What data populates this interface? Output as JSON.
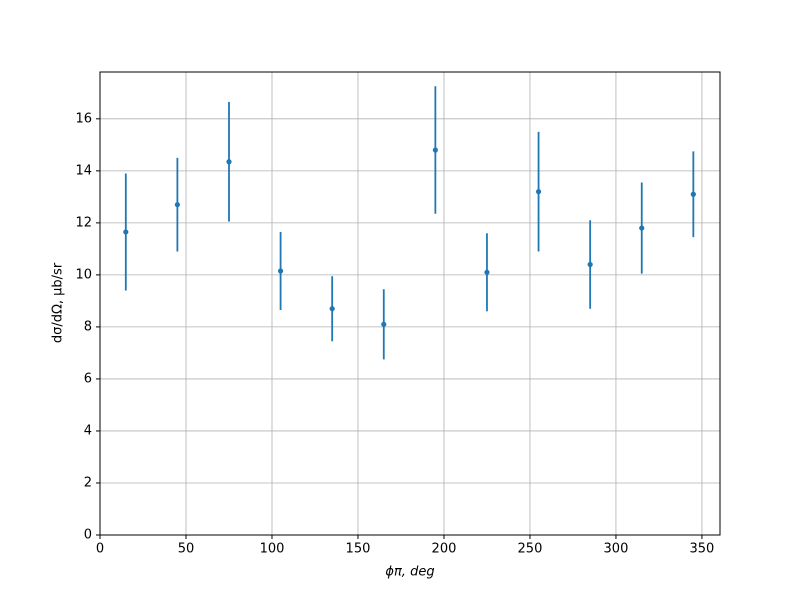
{
  "chart_data": {
    "type": "errorbar",
    "xlabel": "ϕπ, deg",
    "ylabel": "dσ/dΩ, μb/sr",
    "x": [
      15,
      45,
      75,
      105,
      135,
      165,
      195,
      225,
      255,
      285,
      315,
      345
    ],
    "values": [
      11.65,
      12.7,
      14.35,
      10.15,
      8.7,
      8.1,
      14.8,
      10.1,
      13.2,
      10.4,
      11.8,
      13.1
    ],
    "errors": [
      2.25,
      1.8,
      2.3,
      1.5,
      1.25,
      1.35,
      2.45,
      1.5,
      2.3,
      1.7,
      1.75,
      1.65
    ],
    "color": "#1f77b4",
    "xlim": [
      0,
      360.5
    ],
    "xticks": [
      0,
      50,
      100,
      150,
      200,
      250,
      300,
      350
    ],
    "ylim": [
      0,
      17.8
    ],
    "yticks": [
      0,
      2,
      4,
      6,
      8,
      10,
      12,
      14,
      16
    ],
    "grid": true
  }
}
